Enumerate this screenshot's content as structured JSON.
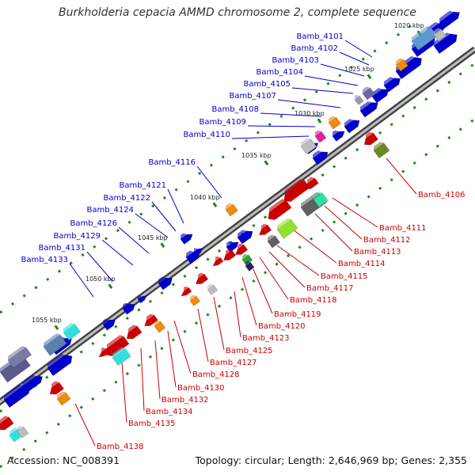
{
  "title": "Burkholderia cepacia AMMD chromosome 2, complete sequence",
  "footer": {
    "accession": "Accession: NC_008391",
    "summary": "Topology: circular; Length: 2,646,969 bp; Genes: 2,355"
  },
  "ruler_labels": [
    "1020 kbp",
    "1025 kbp",
    "1030 kbp",
    "1035 kbp",
    "1040 kbp",
    "1045 kbp",
    "1050 kbp",
    "1055 kbp"
  ],
  "strand_colors": {
    "forward": "#0000cc",
    "reverse": "#cc0000"
  },
  "forward_genes": [
    "Bamb_4101",
    "Bamb_4102",
    "Bamb_4103",
    "Bamb_4104",
    "Bamb_4105",
    "Bamb_4107",
    "Bamb_4108",
    "Bamb_4109",
    "Bamb_4110",
    "Bamb_4116",
    "Bamb_4121",
    "Bamb_4122",
    "Bamb_4124",
    "Bamb_4126",
    "Bamb_4129",
    "Bamb_4131",
    "Bamb_4133"
  ],
  "reverse_genes": [
    "Bamb_4106",
    "Bamb_4111",
    "Bamb_4112",
    "Bamb_4113",
    "Bamb_4114",
    "Bamb_4115",
    "Bamb_4117",
    "Bamb_4118",
    "Bamb_4119",
    "Bamb_4120",
    "Bamb_4123",
    "Bamb_4125",
    "Bamb_4127",
    "Bamb_4128",
    "Bamb_4130",
    "Bamb_4132",
    "Bamb_4134",
    "Bamb_4135",
    "Bamb_4138"
  ]
}
